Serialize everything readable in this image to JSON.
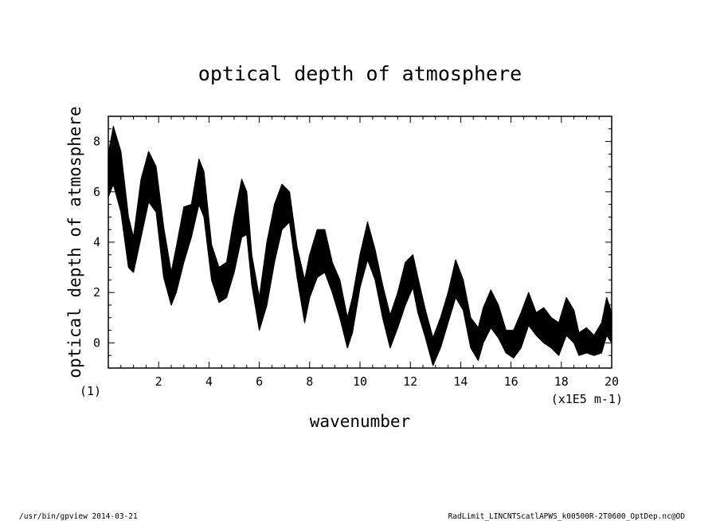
{
  "chart_data": {
    "type": "line",
    "title": "optical depth of atmosphere",
    "xlabel": "wavenumber",
    "ylabel": "optical depth of atmosphere",
    "x_unit": "(x1E5 m-1)",
    "corner_label": "(1)",
    "xlim": [
      0,
      20
    ],
    "ylim": [
      -1,
      9
    ],
    "xticks": [
      2,
      4,
      6,
      8,
      10,
      12,
      14,
      16,
      18,
      20
    ],
    "yticks": [
      0,
      2,
      4,
      6,
      8
    ],
    "x_minor_step": 0.5,
    "y_minor_step": 0.5,
    "grid": false,
    "series": [
      {
        "color": "#000000",
        "x": [
          0.0,
          0.2,
          0.5,
          0.8,
          1.0,
          1.3,
          1.6,
          1.9,
          2.2,
          2.5,
          2.7,
          3.0,
          3.3,
          3.6,
          3.8,
          4.1,
          4.4,
          4.7,
          5.0,
          5.3,
          5.5,
          5.7,
          6.0,
          6.3,
          6.6,
          6.9,
          7.2,
          7.5,
          7.8,
          8.0,
          8.3,
          8.6,
          8.9,
          9.2,
          9.5,
          9.7,
          10.0,
          10.3,
          10.6,
          10.9,
          11.2,
          11.5,
          11.8,
          12.1,
          12.3,
          12.6,
          12.9,
          13.2,
          13.5,
          13.8,
          14.1,
          14.4,
          14.7,
          14.9,
          15.2,
          15.5,
          15.8,
          16.1,
          16.4,
          16.7,
          17.0,
          17.3,
          17.6,
          17.9,
          18.2,
          18.5,
          18.7,
          19.0,
          19.3,
          19.6,
          19.8,
          20.0
        ],
        "upper": [
          7.5,
          8.6,
          7.6,
          5.0,
          4.2,
          6.5,
          7.6,
          7.0,
          4.6,
          2.8,
          3.8,
          5.4,
          5.5,
          7.3,
          6.8,
          3.9,
          3.0,
          3.2,
          5.0,
          6.5,
          6.0,
          3.5,
          1.8,
          4.0,
          5.5,
          6.3,
          6.0,
          3.8,
          2.5,
          3.5,
          4.5,
          4.5,
          3.2,
          2.5,
          1.0,
          1.8,
          3.5,
          4.8,
          3.7,
          2.3,
          1.1,
          2.0,
          3.2,
          3.5,
          2.6,
          1.3,
          0.2,
          1.0,
          2.0,
          3.3,
          2.5,
          1.0,
          0.6,
          1.4,
          2.1,
          1.5,
          0.5,
          0.5,
          1.2,
          2.0,
          1.2,
          1.4,
          1.0,
          0.8,
          1.8,
          1.3,
          0.4,
          0.6,
          0.3,
          0.8,
          1.8,
          1.2
        ],
        "lower": [
          5.8,
          6.3,
          5.2,
          3.0,
          2.8,
          4.2,
          5.6,
          5.2,
          2.6,
          1.5,
          2.0,
          3.2,
          4.2,
          5.5,
          5.0,
          2.5,
          1.6,
          1.8,
          2.8,
          4.2,
          4.3,
          2.3,
          0.5,
          1.5,
          3.2,
          4.5,
          4.8,
          2.6,
          0.8,
          1.8,
          2.6,
          2.8,
          2.0,
          1.0,
          -0.2,
          0.4,
          2.2,
          3.3,
          2.5,
          1.0,
          -0.2,
          0.6,
          1.5,
          2.2,
          1.2,
          0.2,
          -0.9,
          -0.2,
          0.8,
          1.8,
          1.3,
          -0.2,
          -0.7,
          0.0,
          0.6,
          0.2,
          -0.4,
          -0.6,
          -0.2,
          0.7,
          0.3,
          0.0,
          -0.2,
          -0.5,
          0.3,
          0.0,
          -0.5,
          -0.4,
          -0.5,
          -0.4,
          0.3,
          0.0
        ]
      }
    ]
  },
  "footer": {
    "left": "/usr/bin/gpview  2014-03-21",
    "right": "RadLimit_LINCNTScatlAPWS_k00500R-2T0600_OptDep.nc@OD"
  }
}
